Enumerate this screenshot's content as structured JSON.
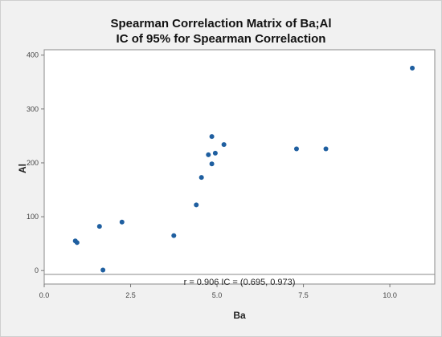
{
  "chart_data": {
    "type": "scatter",
    "title": "Spearman Correlaction Matrix of Ba;Al",
    "subtitle": "IC of 95% for Spearman Correlaction",
    "xlabel": "Ba",
    "ylabel": "Al",
    "xlim": [
      0,
      11.3
    ],
    "ylim": [
      -25,
      410
    ],
    "x_ticks": [
      "0.0",
      "2.5",
      "5.0",
      "7.5",
      "10.0"
    ],
    "y_ticks": [
      "0",
      "100",
      "200",
      "300",
      "400"
    ],
    "grid": false,
    "legend": "none",
    "annotation": "r = 0.906  IC = (0.695, 0.973)",
    "marker_color": "#1f5fa0",
    "points": [
      {
        "x": 0.9,
        "y": 55
      },
      {
        "x": 0.95,
        "y": 52
      },
      {
        "x": 1.6,
        "y": 82
      },
      {
        "x": 1.7,
        "y": 1
      },
      {
        "x": 2.25,
        "y": 90
      },
      {
        "x": 3.75,
        "y": 65
      },
      {
        "x": 4.4,
        "y": 122
      },
      {
        "x": 4.55,
        "y": 173
      },
      {
        "x": 4.75,
        "y": 215
      },
      {
        "x": 4.85,
        "y": 249
      },
      {
        "x": 4.85,
        "y": 198
      },
      {
        "x": 4.95,
        "y": 218
      },
      {
        "x": 5.2,
        "y": 234
      },
      {
        "x": 7.3,
        "y": 226
      },
      {
        "x": 8.15,
        "y": 226
      },
      {
        "x": 10.65,
        "y": 376
      }
    ]
  }
}
